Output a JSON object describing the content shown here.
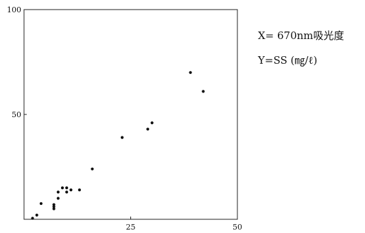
{
  "chart_data": {
    "type": "scatter",
    "title": "",
    "xlabel": "",
    "ylabel": "",
    "xlim": [
      0,
      50
    ],
    "ylim": [
      0,
      100
    ],
    "x_ticks": [
      {
        "value": 25,
        "label": "25"
      },
      {
        "value": 50,
        "label": "50"
      }
    ],
    "y_ticks": [
      {
        "value": 50,
        "label": "50"
      },
      {
        "value": 100,
        "label": "100"
      }
    ],
    "grid": false,
    "annotations": [
      "X= 670nm吸光度",
      "Y=SS (㎎/ℓ)"
    ],
    "points": [
      {
        "x": 2,
        "y": 0.5
      },
      {
        "x": 3,
        "y": 2
      },
      {
        "x": 4,
        "y": 7.5
      },
      {
        "x": 7,
        "y": 5
      },
      {
        "x": 7,
        "y": 6
      },
      {
        "x": 7,
        "y": 7
      },
      {
        "x": 8,
        "y": 10
      },
      {
        "x": 8,
        "y": 13
      },
      {
        "x": 9,
        "y": 15
      },
      {
        "x": 10,
        "y": 13
      },
      {
        "x": 10,
        "y": 15
      },
      {
        "x": 11,
        "y": 14
      },
      {
        "x": 13,
        "y": 14
      },
      {
        "x": 16,
        "y": 24
      },
      {
        "x": 23,
        "y": 39
      },
      {
        "x": 29,
        "y": 43
      },
      {
        "x": 30,
        "y": 46
      },
      {
        "x": 39,
        "y": 70
      },
      {
        "x": 42,
        "y": 61
      }
    ],
    "colors": {
      "axis": "#222222",
      "points": "#111111"
    }
  }
}
